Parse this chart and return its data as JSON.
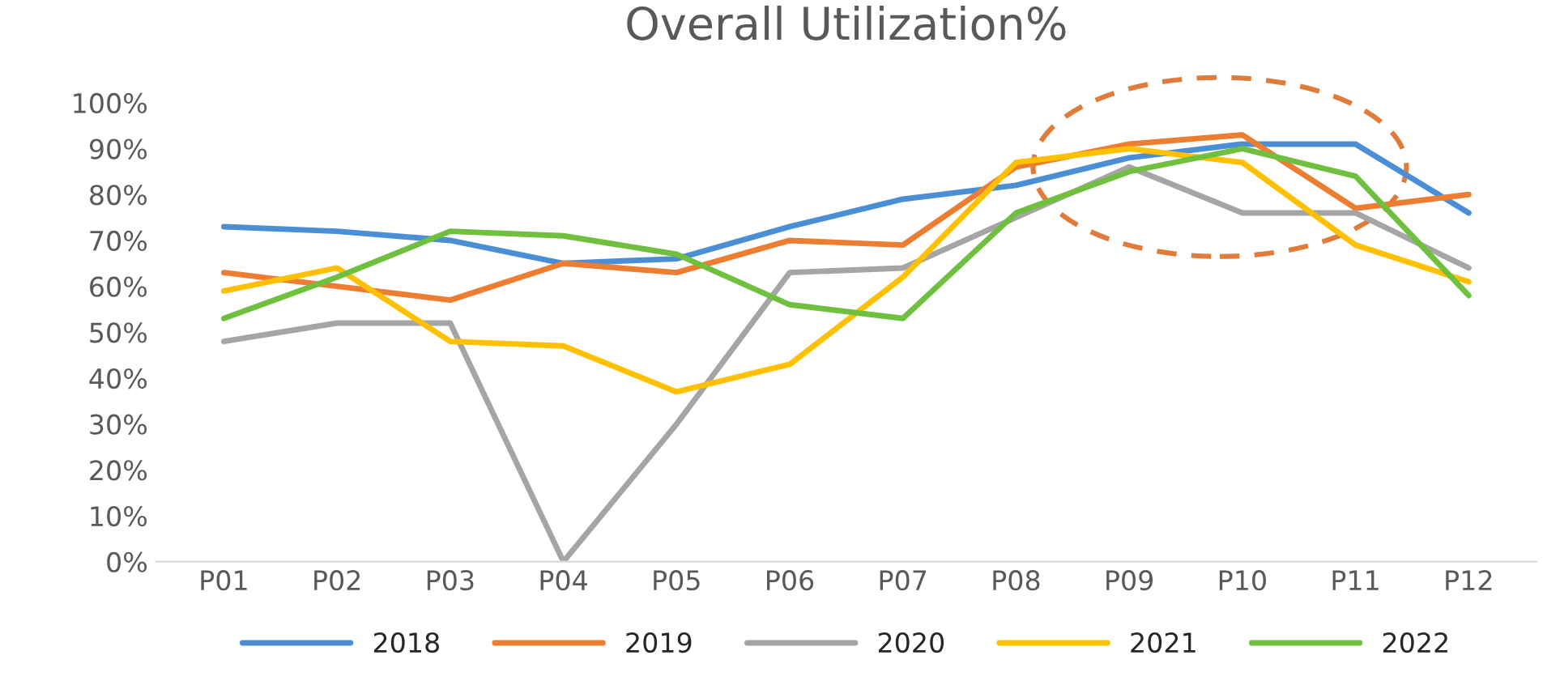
{
  "chart_data": {
    "type": "line",
    "title": "Overall Utilization%",
    "categories": [
      "P01",
      "P02",
      "P03",
      "P04",
      "P05",
      "P06",
      "P07",
      "P08",
      "P09",
      "P10",
      "P11",
      "P12"
    ],
    "series": [
      {
        "name": "2018",
        "color": "#4a8fd6",
        "values": [
          73,
          72,
          70,
          65,
          66,
          73,
          79,
          82,
          88,
          91,
          91,
          76
        ]
      },
      {
        "name": "2019",
        "color": "#ed7d31",
        "values": [
          63,
          60,
          57,
          65,
          63,
          70,
          69,
          86,
          91,
          93,
          77,
          80
        ]
      },
      {
        "name": "2020",
        "color": "#a5a5a5",
        "values": [
          48,
          52,
          52,
          0,
          30,
          63,
          64,
          75,
          86,
          76,
          76,
          64
        ]
      },
      {
        "name": "2021",
        "color": "#ffc000",
        "values": [
          59,
          64,
          48,
          47,
          37,
          43,
          62,
          87,
          90,
          87,
          69,
          61
        ]
      },
      {
        "name": "2022",
        "color": "#70c040",
        "values": [
          53,
          62,
          72,
          71,
          67,
          56,
          53,
          76,
          85,
          90,
          84,
          58
        ]
      }
    ],
    "ylim": [
      0,
      100
    ],
    "yticks": [
      {
        "value": 0,
        "label": "0%"
      },
      {
        "value": 10,
        "label": "10%"
      },
      {
        "value": 20,
        "label": "20%"
      },
      {
        "value": 30,
        "label": "30%"
      },
      {
        "value": 40,
        "label": "40%"
      },
      {
        "value": 50,
        "label": "50%"
      },
      {
        "value": 60,
        "label": "60%"
      },
      {
        "value": 70,
        "label": "70%"
      },
      {
        "value": 80,
        "label": "80%"
      },
      {
        "value": 90,
        "label": "90%"
      },
      {
        "value": 100,
        "label": "100%"
      }
    ],
    "legend": "bottom",
    "grid": false,
    "line_style": "solid",
    "marker": "none"
  }
}
